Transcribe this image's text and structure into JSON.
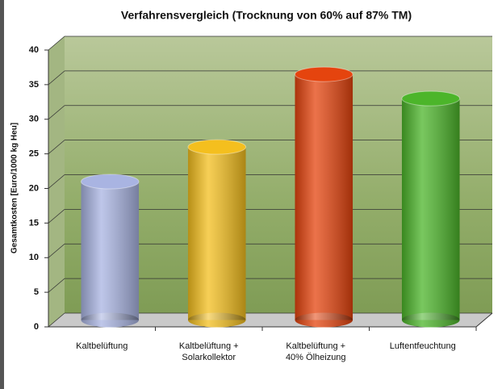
{
  "chart_data": {
    "type": "bar3d",
    "title": "Verfahrensvergleich (Trocknung von 60% auf 87% TM)",
    "y_label": "Gesamtkosten [Euro/1000 kg Heu]",
    "categories": [
      "Kaltbelüftung",
      "Kaltbelüftung +\nSolarkollektor",
      "Kaltbelüftung +\n40% Ölheizung",
      "Luftentfeuchtung"
    ],
    "values": [
      20,
      25,
      35.5,
      32
    ],
    "colors": [
      "#a9b4e2",
      "#f4bf1e",
      "#e5440e",
      "#4cb52a"
    ],
    "ylim": [
      0,
      40
    ],
    "yticks": [
      0,
      5,
      10,
      15,
      20,
      25,
      30,
      35,
      40
    ],
    "grid": true
  }
}
